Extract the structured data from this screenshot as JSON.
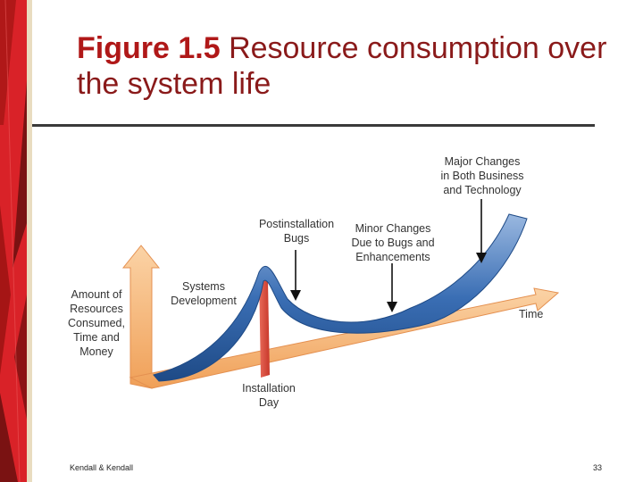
{
  "slide": {
    "title_fig": "Figure 1.5",
    "title_rest": "Resource consumption over the system life",
    "footer_left": "Kendall & Kendall",
    "page_number": "33"
  },
  "diagram": {
    "y_axis_label": "Amount of Resources Consumed, Time and Money",
    "x_axis_label": "Time",
    "systems_development": "Systems Development",
    "installation_day": "Installation Day",
    "postinstallation_bugs": "Postinstallation Bugs",
    "minor_changes": "Minor Changes Due to Bugs and Enhancements",
    "major_changes": "Major Changes in Both Business and Technology"
  },
  "colors": {
    "title": "#8a1a1a",
    "curve_blue": "#2e5f9e",
    "axis_orange": "#f4b070",
    "install_red": "#d84a3a",
    "strip_red": "#e0252a"
  }
}
